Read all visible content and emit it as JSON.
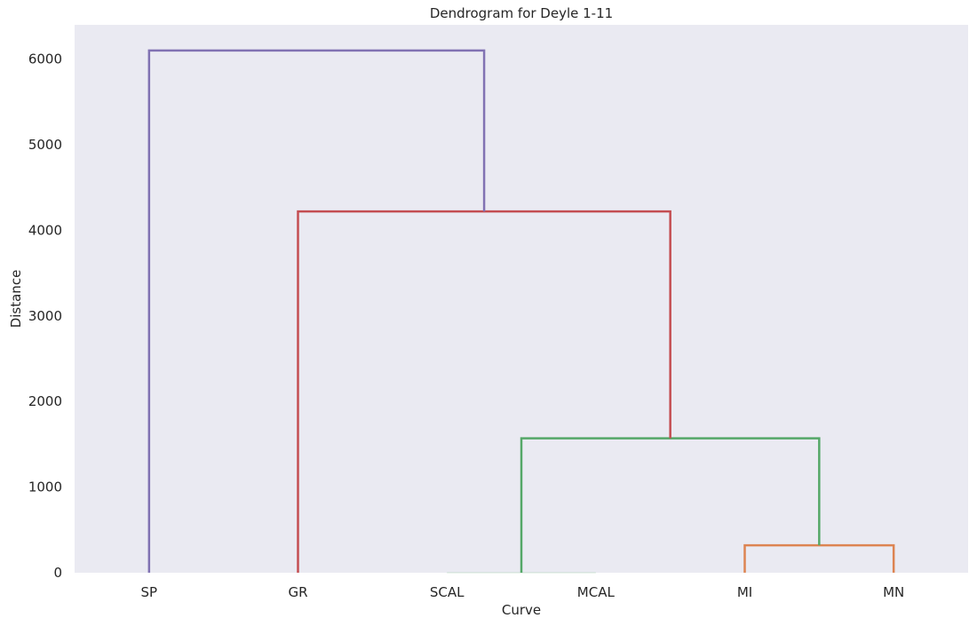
{
  "chart_data": {
    "type": "dendrogram",
    "title": "Dendrogram for Deyle 1-11",
    "xlabel": "Curve",
    "ylabel": "Distance",
    "leaves": [
      "SP",
      "GR",
      "SCAL",
      "MCAL",
      "MI",
      "MN"
    ],
    "ylim": [
      0,
      6400
    ],
    "yticks": [
      0,
      1000,
      2000,
      3000,
      4000,
      5000,
      6000
    ],
    "grid": false,
    "background": "#eaeaf2",
    "merges": [
      {
        "left": "MI",
        "right": "MN",
        "height": 320,
        "color": "#dd8452"
      },
      {
        "left": "SCAL",
        "right": "MCAL",
        "height": 0,
        "color": "#55a868"
      },
      {
        "left": "SCAL+MCAL",
        "right": "MI+MN",
        "height": 1570,
        "color": "#55a868"
      },
      {
        "left": "GR",
        "right": "SCAL+MCAL+MI+MN",
        "height": 4220,
        "color": "#c44e52"
      },
      {
        "left": "SP",
        "right": "GR+SCAL+MCAL+MI+MN",
        "height": 6100,
        "color": "#8172b3"
      }
    ]
  }
}
